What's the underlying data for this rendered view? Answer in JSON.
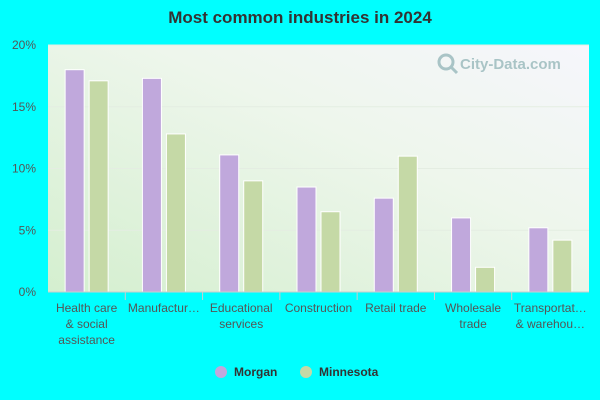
{
  "title": "Most common industries in 2024",
  "watermark": "City-Data.com",
  "chart_data": {
    "type": "bar",
    "categories": [
      [
        "Health care",
        "& social",
        "assistance"
      ],
      [
        "Manufactur…"
      ],
      [
        "Educational",
        "services"
      ],
      [
        "Construction"
      ],
      [
        "Retail trade"
      ],
      [
        "Wholesale",
        "trade"
      ],
      [
        "Transportat…",
        "& warehou…"
      ]
    ],
    "series": [
      {
        "name": "Morgan",
        "color": "#c0a8dc",
        "values": [
          18.0,
          17.3,
          11.1,
          8.5,
          7.6,
          6.0,
          5.2
        ]
      },
      {
        "name": "Minnesota",
        "color": "#c5d9a6",
        "values": [
          17.1,
          12.8,
          9.0,
          6.5,
          11.0,
          2.0,
          4.2
        ]
      }
    ],
    "yticks": [
      "0%",
      "5%",
      "10%",
      "15%",
      "20%"
    ],
    "ylim": [
      0,
      20
    ],
    "grid": true,
    "legend_position": "bottom"
  }
}
